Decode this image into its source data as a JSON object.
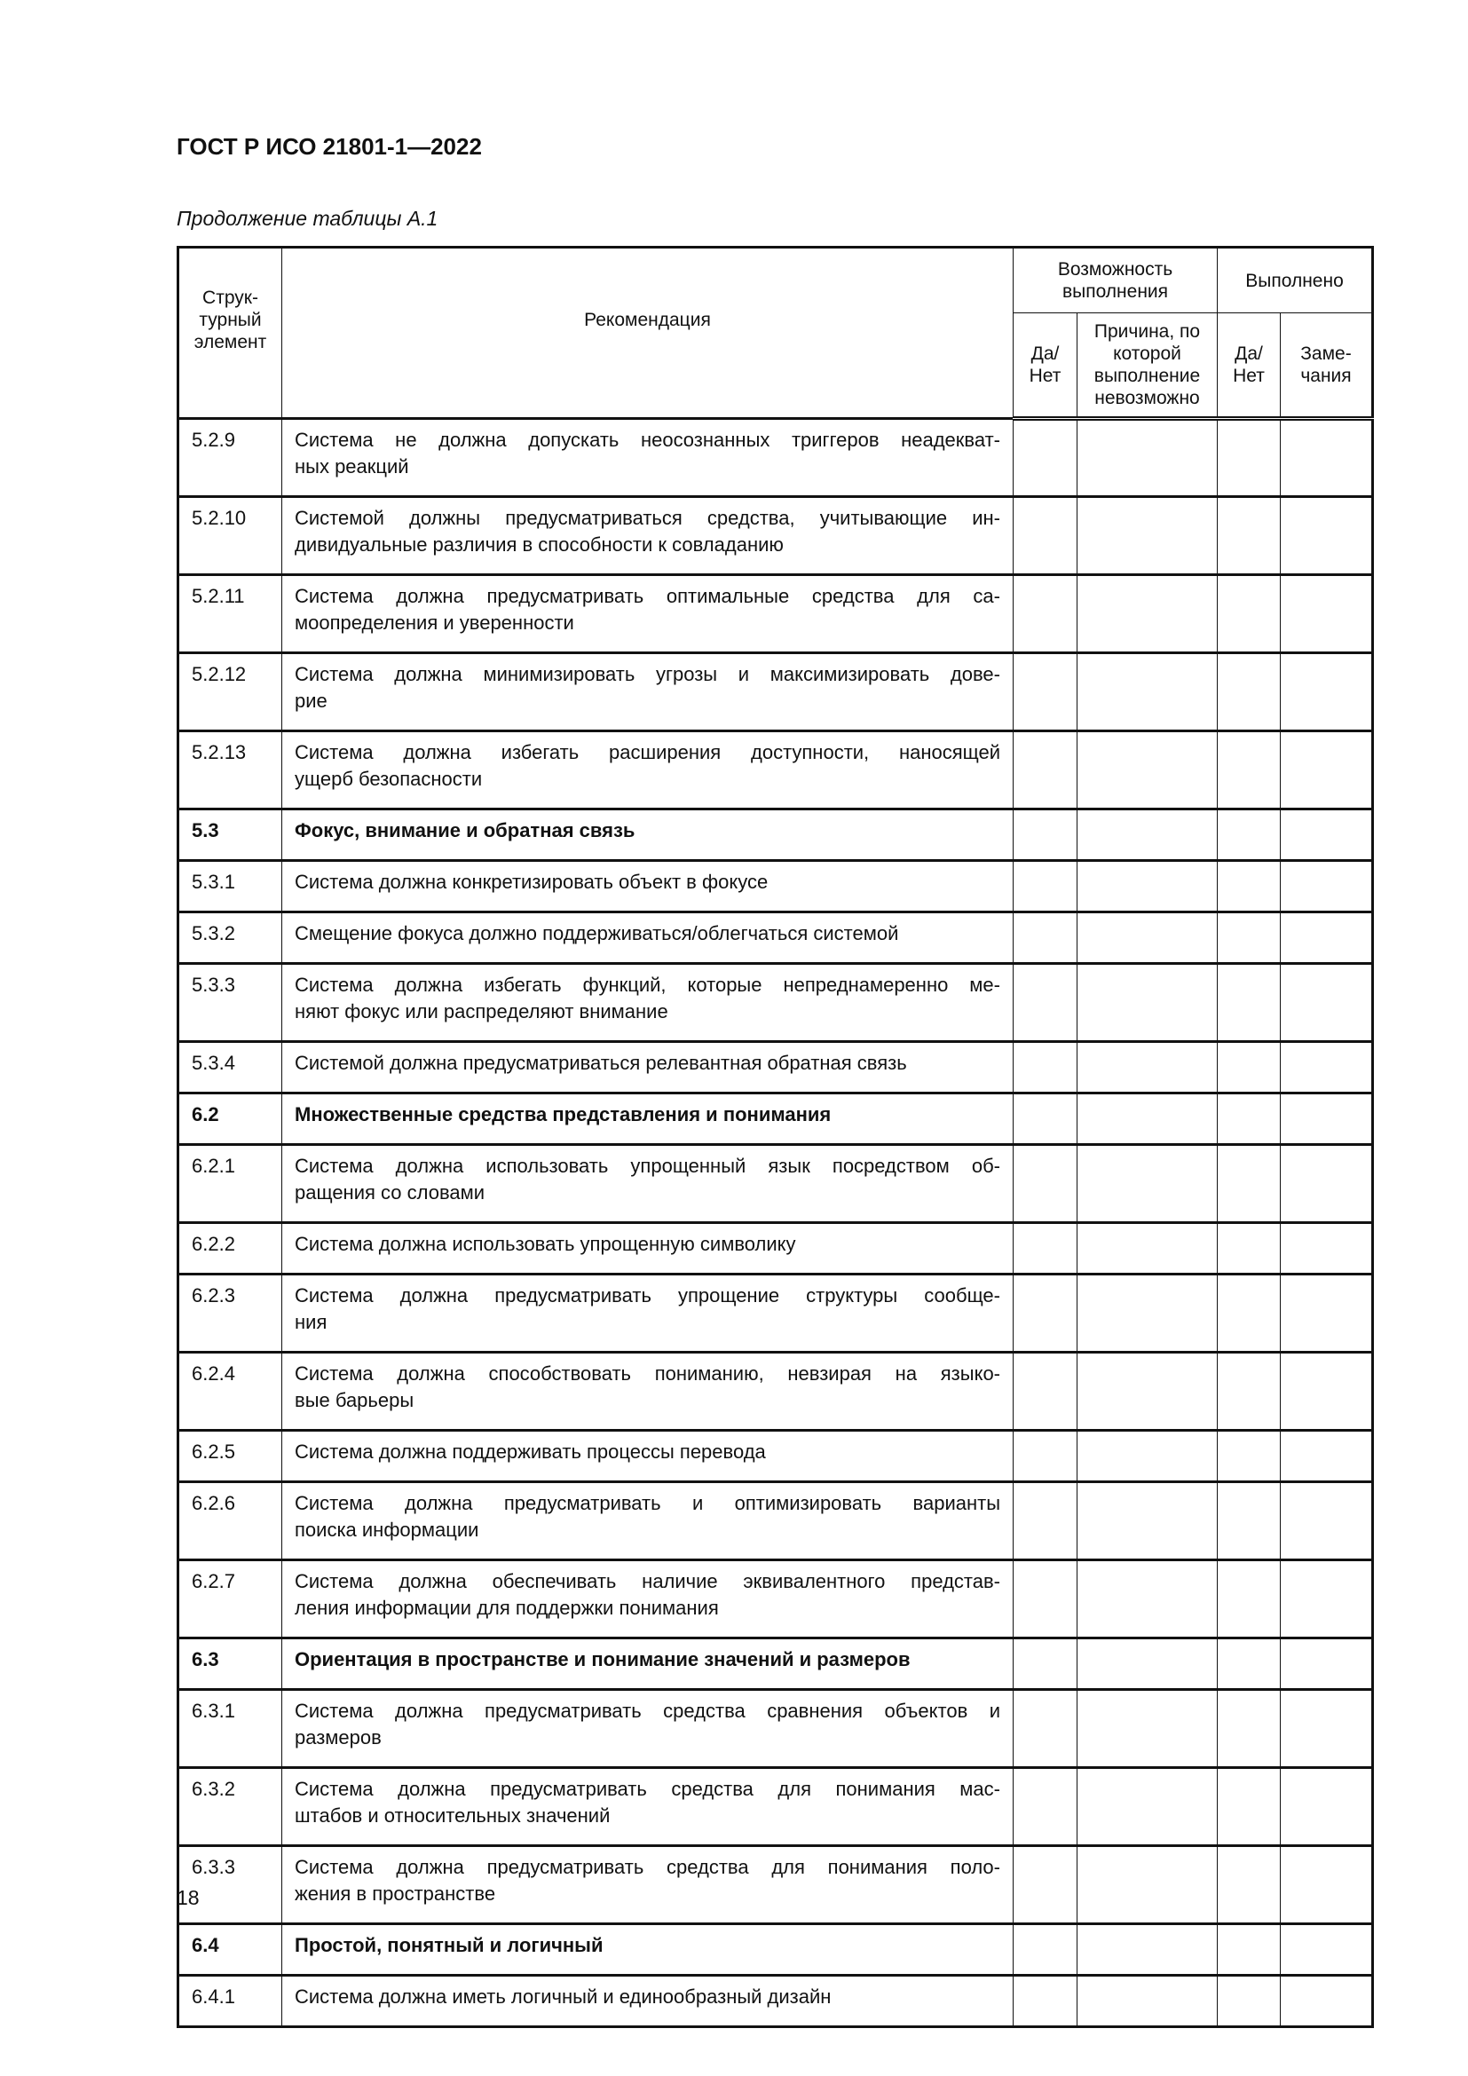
{
  "header": {
    "title": "ГОСТ Р ИСО 21801-1—2022",
    "caption": "Продолжение таблицы А.1"
  },
  "table": {
    "columns": {
      "element": "Струк-\nтурный\nэлемент",
      "recommendation": "Рекомендация",
      "feasibility": "Возможность выполнения",
      "feasibility_yes_no": "Да/ Нет",
      "reason": "Причина, по которой выполнение невозможно",
      "done": "Выполнено",
      "done_yes_no": "Да/ Нет",
      "remarks": "Заме-\nчания"
    },
    "rows": [
      {
        "id": "5.2.9",
        "lines": [
          "Система не должна допускать неосознанных триггеров неадекват-",
          "ных реакций"
        ]
      },
      {
        "id": "5.2.10",
        "lines": [
          "Системой должны предусматриваться средства, учитывающие ин-",
          "дивидуальные различия в способности к совладанию"
        ]
      },
      {
        "id": "5.2.11",
        "lines": [
          "Система должна предусматривать оптимальные средства для са-",
          "моопределения и уверенности"
        ]
      },
      {
        "id": "5.2.12",
        "lines": [
          "Система должна минимизировать угрозы и максимизировать дове-",
          "рие"
        ]
      },
      {
        "id": "5.2.13",
        "lines": [
          "Система должна избегать расширения доступности, наносящей",
          "ущерб безопасности"
        ]
      },
      {
        "id": "5.3",
        "section": true,
        "lines": [
          "Фокус, внимание и обратная связь"
        ]
      },
      {
        "id": "5.3.1",
        "lines": [
          "Система должна конкретизировать объект в фокусе"
        ]
      },
      {
        "id": "5.3.2",
        "lines": [
          "Смещение фокуса должно поддерживаться/облегчаться системой"
        ]
      },
      {
        "id": "5.3.3",
        "lines": [
          "Система должна избегать функций, которые непреднамеренно ме-",
          "няют фокус или распределяют внимание"
        ]
      },
      {
        "id": "5.3.4",
        "lines": [
          "Системой должна предусматриваться релевантная обратная связь"
        ]
      },
      {
        "id": "6.2",
        "section": true,
        "lines": [
          "Множественные средства представления и понимания"
        ]
      },
      {
        "id": "6.2.1",
        "lines": [
          "Система должна использовать упрощенный язык посредством об-",
          "ращения со словами"
        ]
      },
      {
        "id": "6.2.2",
        "lines": [
          "Система должна использовать упрощенную символику"
        ]
      },
      {
        "id": "6.2.3",
        "lines": [
          "Система должна предусматривать упрощение структуры сообще-",
          "ния"
        ]
      },
      {
        "id": "6.2.4",
        "lines": [
          "Система должна способствовать пониманию, невзирая на языко-",
          "вые барьеры"
        ]
      },
      {
        "id": "6.2.5",
        "lines": [
          "Система должна поддерживать процессы перевода"
        ]
      },
      {
        "id": "6.2.6",
        "lines": [
          "Система должна предусматривать и оптимизировать варианты",
          "поиска информации"
        ]
      },
      {
        "id": "6.2.7",
        "lines": [
          "Система должна обеспечивать наличие эквивалентного представ-",
          "ления информации для поддержки понимания"
        ]
      },
      {
        "id": "6.3",
        "section": true,
        "lines": [
          "Ориентация в пространстве и понимание значений и размеров"
        ]
      },
      {
        "id": "6.3.1",
        "lines": [
          "Система должна предусматривать средства сравнения объектов и",
          "размеров"
        ]
      },
      {
        "id": "6.3.2",
        "lines": [
          "Система должна предусматривать средства для понимания мас-",
          "штабов и относительных значений"
        ]
      },
      {
        "id": "6.3.3",
        "lines": [
          "Система должна предусматривать средства для понимания поло-",
          "жения в пространстве"
        ]
      },
      {
        "id": "6.4",
        "section": true,
        "lines": [
          "Простой, понятный и логичный"
        ]
      },
      {
        "id": "6.4.1",
        "lines": [
          "Система должна иметь логичный и единообразный дизайн"
        ]
      }
    ]
  },
  "footer": {
    "page_number": "18"
  }
}
